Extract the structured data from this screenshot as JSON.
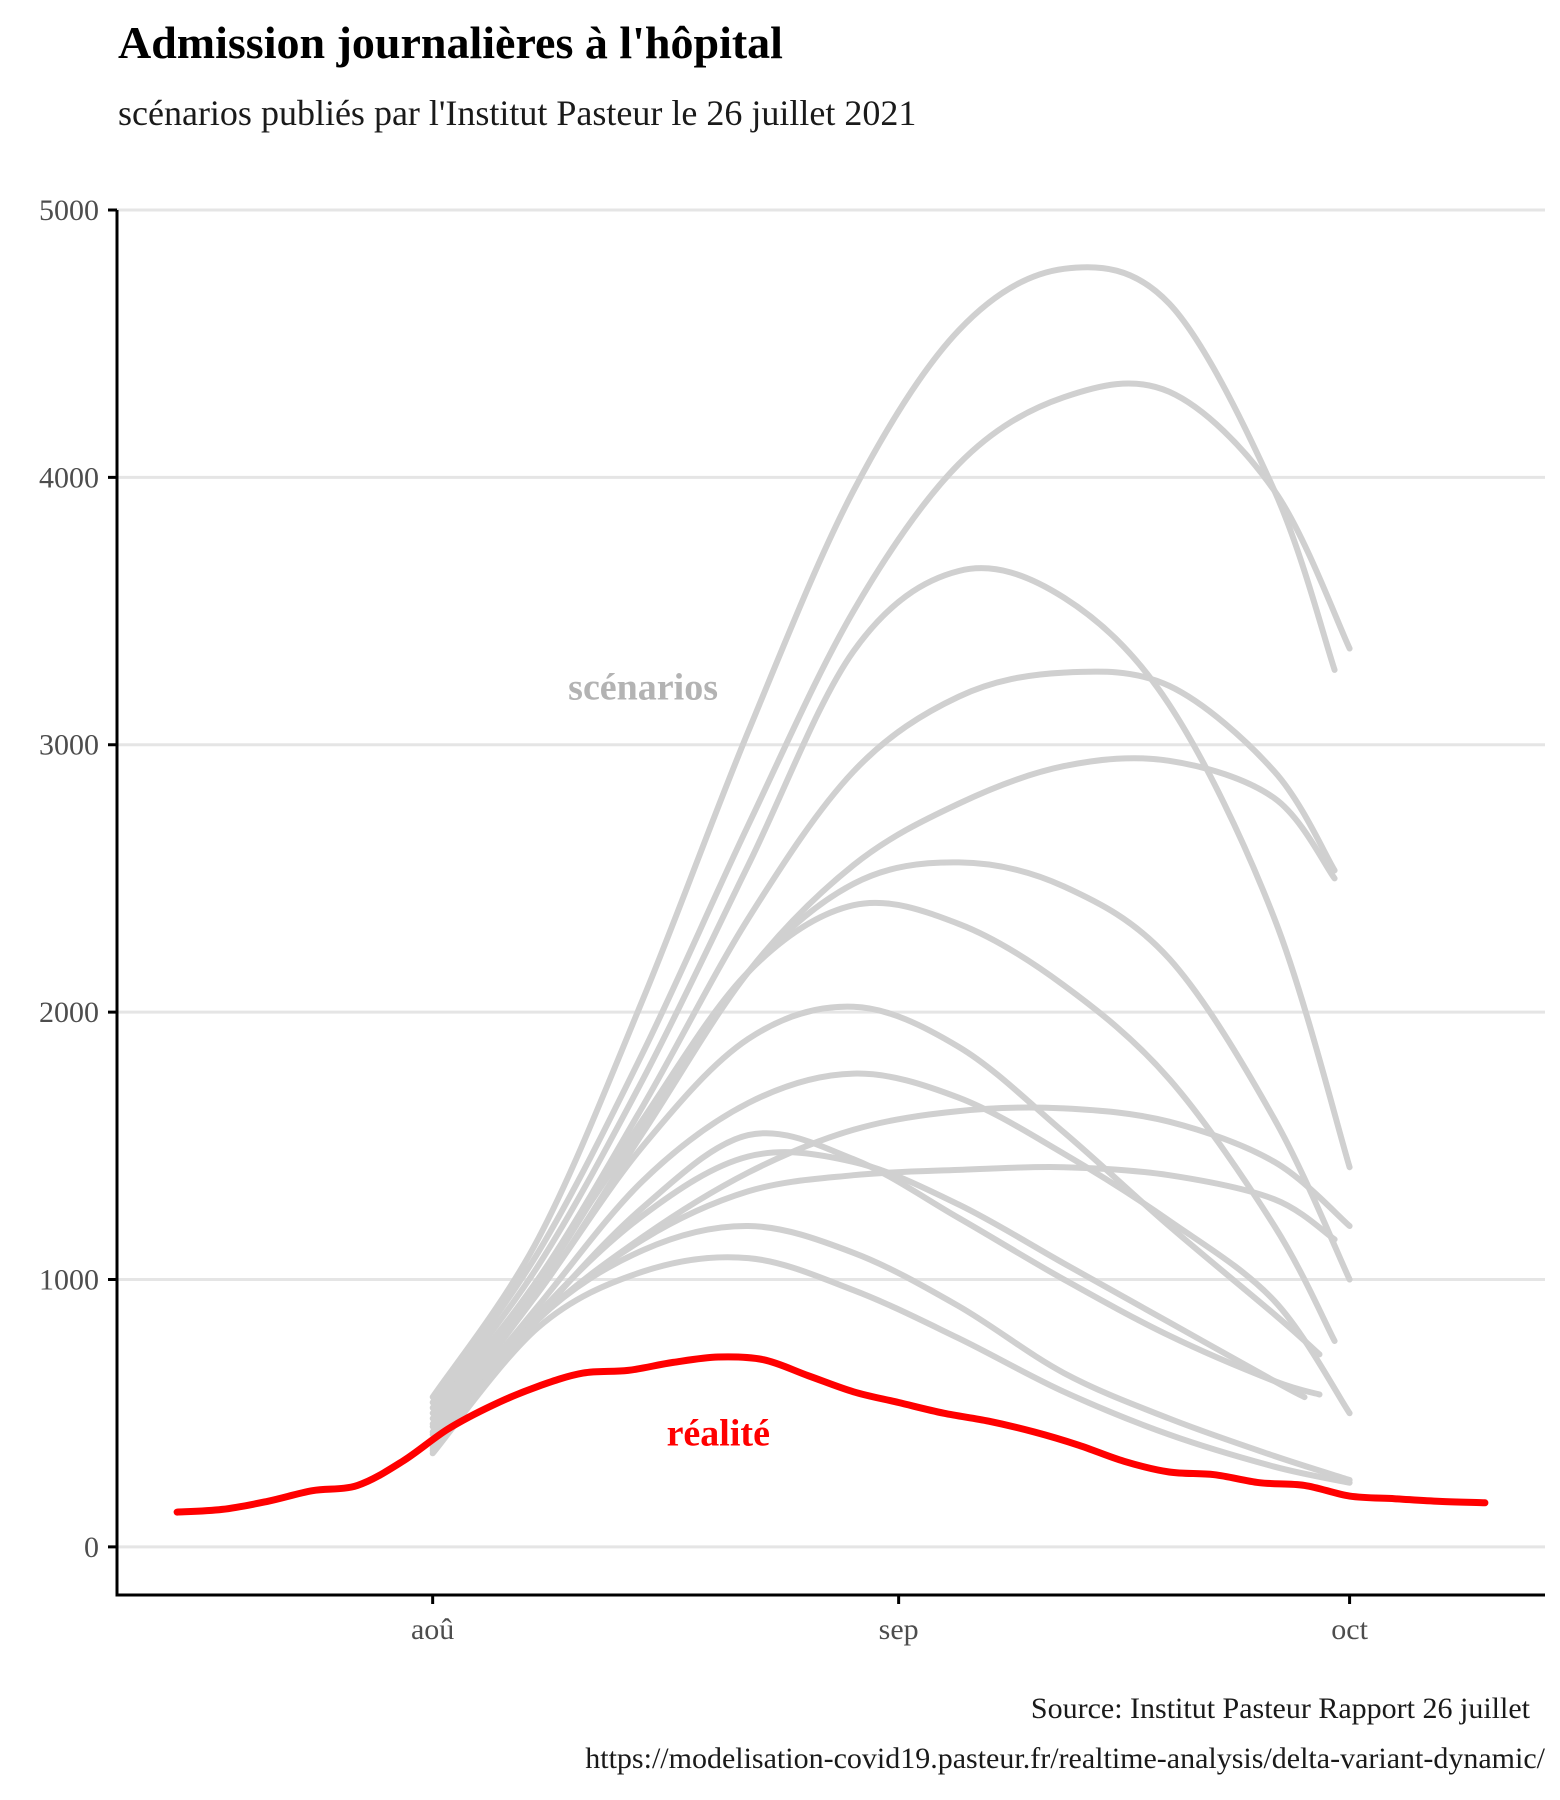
{
  "title": "Admission journalières à l'hôpital",
  "subtitle": "scénarios publiés par l'Institut Pasteur le 26 juillet 2021",
  "caption": {
    "line1": "Source: Institut Pasteur Rapport 26 juillet",
    "line2": "https://modelisation-covid19.pasteur.fr/realtime-analysis/delta-variant-dynamic/"
  },
  "chart_data": {
    "type": "line",
    "title": "Admission journalières à l'hôpital",
    "subtitle": "scénarios publiés par l'Institut Pasteur le 26 juillet 2021",
    "xlabel": "",
    "ylabel": "",
    "xlim": [
      "2021-07-11",
      "2021-10-14"
    ],
    "ylim": [
      -180,
      5000
    ],
    "x_ticks": [
      {
        "date": "2021-08-01",
        "label": "aoû"
      },
      {
        "date": "2021-09-01",
        "label": "sep"
      },
      {
        "date": "2021-10-01",
        "label": "oct"
      }
    ],
    "y_ticks": [
      0,
      1000,
      2000,
      3000,
      4000,
      5000
    ],
    "grid": "horizontal",
    "legend": "none",
    "annotations": [
      {
        "text": "scénarios",
        "date": "2021-08-15",
        "y": 3170,
        "color": "#b3b3b3"
      },
      {
        "text": "réalité",
        "date": "2021-08-20",
        "y": 380,
        "color": "#ff0000"
      }
    ],
    "colors": {
      "scenarios": "#d0d0d0",
      "realite": "#ff0000"
    },
    "scenarios": [
      {
        "dates": [
          "2021-08-01",
          "2021-08-08",
          "2021-08-15",
          "2021-08-22",
          "2021-08-29",
          "2021-09-05",
          "2021-09-12",
          "2021-09-19",
          "2021-09-26",
          "2021-09-30"
        ],
        "values": [
          560,
          1150,
          2050,
          3050,
          3950,
          4550,
          4780,
          4650,
          3950,
          3280
        ]
      },
      {
        "dates": [
          "2021-08-01",
          "2021-08-08",
          "2021-08-15",
          "2021-08-22",
          "2021-08-29",
          "2021-09-05",
          "2021-09-12",
          "2021-09-19",
          "2021-09-26",
          "2021-10-01"
        ],
        "values": [
          540,
          1100,
          1850,
          2700,
          3500,
          4050,
          4300,
          4320,
          3950,
          3360
        ]
      },
      {
        "dates": [
          "2021-08-01",
          "2021-08-08",
          "2021-08-15",
          "2021-08-22",
          "2021-08-29",
          "2021-09-05",
          "2021-09-12",
          "2021-09-19",
          "2021-09-26",
          "2021-10-01"
        ],
        "values": [
          520,
          1050,
          1750,
          2550,
          3350,
          3650,
          3550,
          3150,
          2350,
          1420
        ]
      },
      {
        "dates": [
          "2021-08-01",
          "2021-08-08",
          "2021-08-15",
          "2021-08-22",
          "2021-08-29",
          "2021-09-05",
          "2021-09-12",
          "2021-09-19",
          "2021-09-26",
          "2021-09-30"
        ],
        "values": [
          500,
          1000,
          1650,
          2350,
          2900,
          3180,
          3270,
          3220,
          2900,
          2530
        ]
      },
      {
        "dates": [
          "2021-08-01",
          "2021-08-08",
          "2021-08-15",
          "2021-08-22",
          "2021-08-29",
          "2021-09-05",
          "2021-09-12",
          "2021-09-19",
          "2021-09-26",
          "2021-09-30"
        ],
        "values": [
          480,
          950,
          1550,
          2150,
          2550,
          2780,
          2920,
          2940,
          2800,
          2500
        ]
      },
      {
        "dates": [
          "2021-08-01",
          "2021-08-08",
          "2021-08-15",
          "2021-08-22",
          "2021-08-29",
          "2021-09-05",
          "2021-09-12",
          "2021-09-19",
          "2021-09-26",
          "2021-10-01"
        ],
        "values": [
          460,
          1000,
          1580,
          2150,
          2480,
          2560,
          2470,
          2200,
          1600,
          1000
        ]
      },
      {
        "dates": [
          "2021-08-01",
          "2021-08-08",
          "2021-08-15",
          "2021-08-22",
          "2021-08-29",
          "2021-09-05",
          "2021-09-12",
          "2021-09-19",
          "2021-09-26",
          "2021-09-30"
        ],
        "values": [
          450,
          980,
          1600,
          2150,
          2400,
          2330,
          2100,
          1750,
          1200,
          770
        ]
      },
      {
        "dates": [
          "2021-08-01",
          "2021-08-08",
          "2021-08-15",
          "2021-08-22",
          "2021-08-29",
          "2021-09-05",
          "2021-09-12",
          "2021-09-19",
          "2021-09-26",
          "2021-09-29"
        ],
        "values": [
          430,
          950,
          1500,
          1900,
          2020,
          1870,
          1550,
          1200,
          870,
          720
        ]
      },
      {
        "dates": [
          "2021-08-01",
          "2021-08-08",
          "2021-08-15",
          "2021-08-22",
          "2021-08-29",
          "2021-09-05",
          "2021-09-12",
          "2021-09-19",
          "2021-09-26",
          "2021-10-01"
        ],
        "values": [
          420,
          900,
          1370,
          1660,
          1770,
          1680,
          1470,
          1220,
          920,
          500
        ]
      },
      {
        "dates": [
          "2021-08-01",
          "2021-08-08",
          "2021-08-15",
          "2021-08-22",
          "2021-08-29",
          "2021-09-05",
          "2021-09-12",
          "2021-09-19",
          "2021-09-26",
          "2021-10-01"
        ],
        "values": [
          400,
          850,
          1160,
          1400,
          1560,
          1630,
          1640,
          1590,
          1440,
          1200
        ]
      },
      {
        "dates": [
          "2021-08-01",
          "2021-08-08",
          "2021-08-15",
          "2021-08-22",
          "2021-08-29",
          "2021-09-05",
          "2021-09-12",
          "2021-09-19",
          "2021-09-26",
          "2021-09-30"
        ],
        "values": [
          390,
          850,
          1150,
          1330,
          1390,
          1410,
          1420,
          1390,
          1300,
          1150
        ]
      },
      {
        "dates": [
          "2021-08-01",
          "2021-08-08",
          "2021-08-15",
          "2021-08-22",
          "2021-08-29",
          "2021-09-05",
          "2021-09-12",
          "2021-09-19",
          "2021-09-26",
          "2021-09-28"
        ],
        "values": [
          380,
          870,
          1240,
          1460,
          1440,
          1280,
          1060,
          840,
          620,
          560
        ]
      },
      {
        "dates": [
          "2021-08-01",
          "2021-08-08",
          "2021-08-15",
          "2021-08-22",
          "2021-08-29",
          "2021-09-05",
          "2021-09-12",
          "2021-09-19",
          "2021-09-26",
          "2021-09-29"
        ],
        "values": [
          370,
          860,
          1270,
          1540,
          1450,
          1230,
          1000,
          790,
          620,
          570
        ]
      },
      {
        "dates": [
          "2021-08-01",
          "2021-08-08",
          "2021-08-15",
          "2021-08-22",
          "2021-08-29",
          "2021-09-05",
          "2021-09-12",
          "2021-09-19",
          "2021-09-26",
          "2021-10-01"
        ],
        "values": [
          360,
          850,
          1110,
          1200,
          1100,
          900,
          650,
          480,
          340,
          250
        ]
      },
      {
        "dates": [
          "2021-08-01",
          "2021-08-08",
          "2021-08-15",
          "2021-08-22",
          "2021-08-29",
          "2021-09-05",
          "2021-09-12",
          "2021-09-19",
          "2021-09-26",
          "2021-10-01"
        ],
        "values": [
          350,
          820,
          1030,
          1080,
          960,
          780,
          580,
          420,
          300,
          240
        ]
      }
    ],
    "realite": {
      "dates": [
        "2021-07-15",
        "2021-07-18",
        "2021-07-21",
        "2021-07-24",
        "2021-07-27",
        "2021-07-30",
        "2021-08-02",
        "2021-08-05",
        "2021-08-08",
        "2021-08-11",
        "2021-08-14",
        "2021-08-17",
        "2021-08-20",
        "2021-08-23",
        "2021-08-26",
        "2021-08-29",
        "2021-09-01",
        "2021-09-04",
        "2021-09-07",
        "2021-09-10",
        "2021-09-13",
        "2021-09-16",
        "2021-09-19",
        "2021-09-22",
        "2021-09-25",
        "2021-09-28",
        "2021-10-01",
        "2021-10-04",
        "2021-10-07",
        "2021-10-10"
      ],
      "values": [
        130,
        140,
        170,
        210,
        230,
        320,
        440,
        530,
        600,
        650,
        660,
        690,
        710,
        700,
        640,
        580,
        540,
        500,
        470,
        430,
        380,
        320,
        280,
        270,
        240,
        230,
        190,
        180,
        170,
        165
      ]
    }
  }
}
